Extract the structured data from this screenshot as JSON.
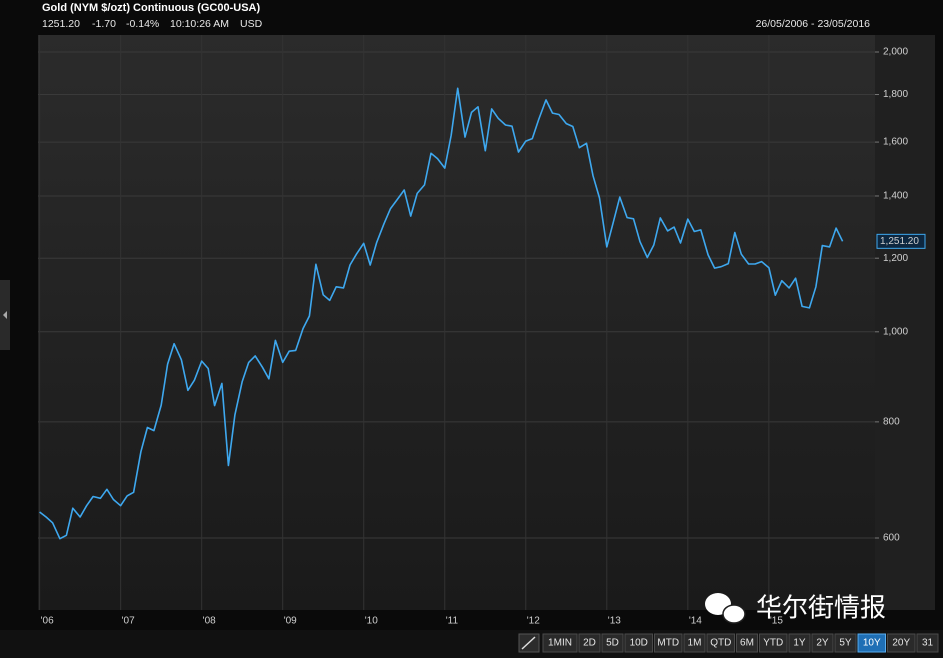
{
  "header": {
    "title": "Gold (NYM $/ozt) Continuous (GC00-USA)",
    "price": "1251.20",
    "change": "-1.70",
    "change_pct": "-0.14%",
    "time": "10:10:26 AM",
    "currency": "USD",
    "date_range": "26/05/2006 - 23/05/2016"
  },
  "chart_data": {
    "type": "line",
    "color": "#3ea8ef",
    "log_y": true,
    "grid": true,
    "x": [
      2006.42,
      2006.5,
      2006.58,
      2006.67,
      2006.75,
      2006.83,
      2006.92,
      2007.0,
      2007.08,
      2007.17,
      2007.25,
      2007.33,
      2007.42,
      2007.5,
      2007.58,
      2007.67,
      2007.75,
      2007.83,
      2007.92,
      2008.0,
      2008.08,
      2008.17,
      2008.25,
      2008.33,
      2008.42,
      2008.5,
      2008.58,
      2008.67,
      2008.75,
      2008.83,
      2008.92,
      2009.0,
      2009.08,
      2009.17,
      2009.25,
      2009.33,
      2009.42,
      2009.5,
      2009.58,
      2009.67,
      2009.75,
      2009.83,
      2009.92,
      2010.0,
      2010.08,
      2010.17,
      2010.25,
      2010.33,
      2010.42,
      2010.5,
      2010.58,
      2010.67,
      2010.75,
      2010.83,
      2010.92,
      2011.0,
      2011.08,
      2011.17,
      2011.25,
      2011.33,
      2011.42,
      2011.5,
      2011.58,
      2011.67,
      2011.75,
      2011.83,
      2011.92,
      2012.0,
      2012.08,
      2012.17,
      2012.25,
      2012.33,
      2012.42,
      2012.5,
      2012.58,
      2012.67,
      2012.75,
      2012.83,
      2012.92,
      2013.0,
      2013.08,
      2013.17,
      2013.25,
      2013.33,
      2013.42,
      2013.5,
      2013.58,
      2013.67,
      2013.75,
      2013.83,
      2013.92,
      2014.0,
      2014.08,
      2014.17,
      2014.25,
      2014.33,
      2014.42,
      2014.5,
      2014.58,
      2014.67,
      2014.75,
      2014.83,
      2014.92,
      2015.0,
      2015.08,
      2015.17,
      2015.25,
      2015.33,
      2015.42,
      2015.5,
      2015.58,
      2015.67,
      2015.75,
      2015.83,
      2015.92,
      2016.0,
      2016.08,
      2016.17,
      2016.25,
      2016.33
    ],
    "values": [
      640,
      632,
      623,
      599,
      604,
      646,
      632,
      650,
      665,
      662,
      677,
      660,
      650,
      666,
      672,
      743,
      789,
      783,
      834,
      923,
      971,
      933,
      865,
      887,
      930,
      913,
      833,
      880,
      718,
      814,
      884,
      927,
      942,
      916,
      890,
      979,
      927,
      953,
      955,
      1008,
      1040,
      1182,
      1096,
      1081,
      1118,
      1115,
      1180,
      1212,
      1245,
      1180,
      1248,
      1307,
      1357,
      1386,
      1421,
      1332,
      1409,
      1439,
      1556,
      1536,
      1500,
      1628,
      1828,
      1620,
      1722,
      1746,
      1566,
      1737,
      1697,
      1669,
      1664,
      1561,
      1604,
      1614,
      1692,
      1776,
      1719,
      1713,
      1675,
      1663,
      1578,
      1595,
      1472,
      1393,
      1234,
      1312,
      1396,
      1327,
      1323,
      1250,
      1202,
      1240,
      1326,
      1284,
      1296,
      1246,
      1322,
      1282,
      1287,
      1210,
      1171,
      1175,
      1184,
      1279,
      1212,
      1183,
      1183,
      1190,
      1172,
      1095,
      1135,
      1115,
      1142,
      1065,
      1061,
      1118,
      1238,
      1234,
      1293,
      1251.2
    ],
    "xlim": [
      2006.4,
      2016.73
    ],
    "xticks": [
      {
        "value": 2006.42,
        "label": "'06"
      },
      {
        "value": 2007.42,
        "label": "'07"
      },
      {
        "value": 2008.42,
        "label": "'08"
      },
      {
        "value": 2009.42,
        "label": "'09"
      },
      {
        "value": 2010.42,
        "label": "'10"
      },
      {
        "value": 2011.42,
        "label": "'11"
      },
      {
        "value": 2012.42,
        "label": "'12"
      },
      {
        "value": 2013.42,
        "label": "'13"
      },
      {
        "value": 2014.42,
        "label": "'14"
      },
      {
        "value": 2015.42,
        "label": "'15"
      }
    ],
    "ylim": [
      502,
      2086
    ],
    "yticks": [
      600,
      800,
      {
        "value": 1000,
        "label": "1,000"
      },
      {
        "value": 1200,
        "label": "1,200"
      },
      {
        "value": 1400,
        "label": "1,400"
      },
      {
        "value": 1600,
        "label": "1,600"
      },
      {
        "value": 1800,
        "label": "1,800"
      },
      {
        "value": 2000,
        "label": "2,000"
      }
    ],
    "last_label": {
      "value": 1251.2,
      "label": "1,251.20"
    }
  },
  "toolbar": [
    "1MIN",
    "2D",
    "5D",
    "10D",
    "MTD",
    "1M",
    "QTD",
    "6M",
    "YTD",
    "1Y",
    "2Y",
    "5Y",
    "10Y",
    "20Y",
    "31"
  ],
  "toolbar_selected": "10Y",
  "watermark": "华尔街情报"
}
